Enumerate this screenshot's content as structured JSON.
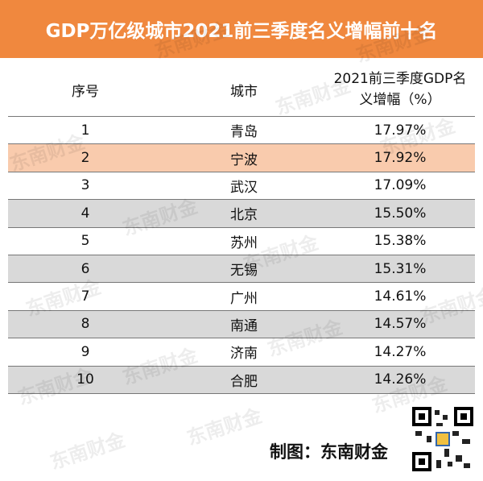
{
  "title": "GDP万亿级城市2021前三季度名义增幅前十名",
  "table": {
    "header": [
      "序号",
      "城市",
      "2021前三季度GDP名义增幅（%）"
    ],
    "rows": [
      [
        "1",
        "青岛",
        "17.97%"
      ],
      [
        "2",
        "宁波",
        "17.92%"
      ],
      [
        "3",
        "武汉",
        "17.09%"
      ],
      [
        "4",
        "北京",
        "15.50%"
      ],
      [
        "5",
        "苏州",
        "15.38%"
      ],
      [
        "6",
        "无锡",
        "15.31%"
      ],
      [
        "7",
        "广州",
        "14.61%"
      ],
      [
        "8",
        "南通",
        "14.57%"
      ],
      [
        "9",
        "济南",
        "14.27%"
      ],
      [
        "10",
        "合肥",
        "14.26%"
      ]
    ]
  },
  "watermark": "东南财金",
  "footer": "制图：东南财金"
}
